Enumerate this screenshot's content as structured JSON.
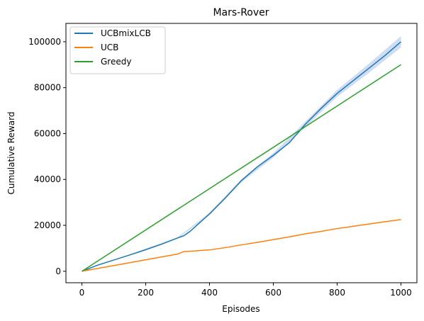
{
  "chart_data": {
    "type": "line",
    "title": "Mars-Rover",
    "xlabel": "Episodes",
    "ylabel": "Cumulative Reward",
    "xlim": [
      -50,
      1050
    ],
    "ylim": [
      -5000,
      108000
    ],
    "xticks": [
      0,
      200,
      400,
      600,
      800,
      1000
    ],
    "yticks": [
      0,
      20000,
      40000,
      60000,
      80000,
      100000
    ],
    "grid": false,
    "legend_position": "top-left",
    "series": [
      {
        "name": "UCBmixLCB",
        "color": "#1f77b4",
        "band_color": "#aec7e8",
        "points": [
          [
            0,
            0
          ],
          [
            50,
            2700
          ],
          [
            100,
            4900
          ],
          [
            150,
            7100
          ],
          [
            200,
            9400
          ],
          [
            250,
            11800
          ],
          [
            300,
            14500
          ],
          [
            320,
            15500
          ],
          [
            340,
            17500
          ],
          [
            360,
            20000
          ],
          [
            380,
            22500
          ],
          [
            400,
            25000
          ],
          [
            450,
            32000
          ],
          [
            500,
            39500
          ],
          [
            550,
            45500
          ],
          [
            600,
            50500
          ],
          [
            650,
            56000
          ],
          [
            700,
            64000
          ],
          [
            750,
            71000
          ],
          [
            800,
            77500
          ],
          [
            850,
            83000
          ],
          [
            900,
            88500
          ],
          [
            950,
            94000
          ],
          [
            1000,
            100000
          ]
        ],
        "band": [
          [
            0,
            0,
            0
          ],
          [
            300,
            14200,
            14800
          ],
          [
            400,
            24500,
            25500
          ],
          [
            500,
            38800,
            40200
          ],
          [
            600,
            49500,
            51500
          ],
          [
            700,
            62800,
            65200
          ],
          [
            800,
            76000,
            79000
          ],
          [
            900,
            86500,
            90500
          ],
          [
            1000,
            97500,
            102500
          ]
        ]
      },
      {
        "name": "UCB",
        "color": "#ff7f0e",
        "points": [
          [
            0,
            0
          ],
          [
            100,
            2500
          ],
          [
            200,
            5000
          ],
          [
            300,
            7500
          ],
          [
            320,
            8600
          ],
          [
            350,
            8800
          ],
          [
            400,
            9300
          ],
          [
            450,
            10300
          ],
          [
            500,
            11500
          ],
          [
            550,
            12600
          ],
          [
            600,
            13800
          ],
          [
            650,
            15000
          ],
          [
            700,
            16300
          ],
          [
            750,
            17400
          ],
          [
            800,
            18600
          ],
          [
            850,
            19600
          ],
          [
            900,
            20600
          ],
          [
            950,
            21600
          ],
          [
            1000,
            22500
          ]
        ]
      },
      {
        "name": "Greedy",
        "color": "#2ca02c",
        "points": [
          [
            0,
            0
          ],
          [
            1000,
            90000
          ]
        ]
      }
    ]
  }
}
